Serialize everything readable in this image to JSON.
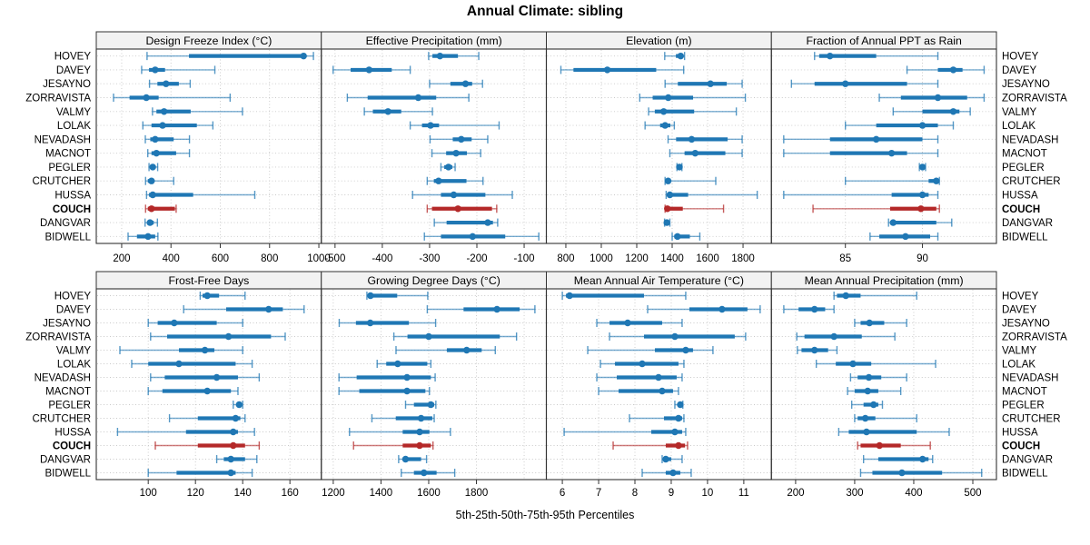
{
  "title": "Annual Climate: sibling",
  "caption": "5th-25th-50th-75th-95th Percentiles",
  "sites": [
    "HOVEY",
    "DAVEY",
    "JESAYNO",
    "ZORRAVISTA",
    "VALMY",
    "LOLAK",
    "NEVADASH",
    "MACNOT",
    "PEGLER",
    "CRUTCHER",
    "HUSSA",
    "COUCH",
    "DANGVAR",
    "BIDWELL"
  ],
  "highlight_site": "COUCH",
  "colors": {
    "series": "#1f77b4",
    "highlight": "#b42828",
    "grid": "#c9c9c9",
    "strip_bg": "#f2f2f2",
    "panel_border": "#333333",
    "text": "#000000"
  },
  "chart_data": {
    "type": "dot-interval-trellis",
    "percentiles": [
      5,
      25,
      50,
      75,
      95
    ],
    "layout": {
      "rows": 2,
      "cols": 4
    },
    "panels": [
      {
        "title": "Design Freeze Index (°C)",
        "xlim": [
          97,
          1010
        ],
        "ticks": [
          200,
          400,
          600,
          800,
          1000
        ],
        "values": [
          [
            303,
            473,
            938,
            946,
            978
          ],
          [
            281,
            311,
            336,
            376,
            578
          ],
          [
            313,
            345,
            380,
            432,
            478
          ],
          [
            167,
            232,
            300,
            350,
            640
          ],
          [
            325,
            341,
            372,
            480,
            690
          ],
          [
            286,
            321,
            366,
            505,
            570
          ],
          [
            296,
            316,
            336,
            411,
            475
          ],
          [
            306,
            321,
            341,
            421,
            475
          ],
          [
            311,
            318,
            326,
            336,
            346
          ],
          [
            297,
            306,
            321,
            331,
            411
          ],
          [
            301,
            311,
            326,
            490,
            740
          ],
          [
            297,
            306,
            321,
            416,
            421
          ],
          [
            295,
            305,
            315,
            330,
            345
          ],
          [
            226,
            262,
            307,
            336,
            347
          ]
        ]
      },
      {
        "title": "Effective Precipitation (mm)",
        "xlim": [
          -529,
          -53
        ],
        "ticks": [
          -500,
          -400,
          -300,
          -200,
          -100
        ],
        "values": [
          [
            -302,
            -294,
            -278,
            -240,
            -196
          ],
          [
            -504,
            -467,
            -428,
            -380,
            -341
          ],
          [
            -300,
            -256,
            -224,
            -210,
            -188
          ],
          [
            -474,
            -431,
            -324,
            -286,
            -217
          ],
          [
            -438,
            -420,
            -388,
            -360,
            -294
          ],
          [
            -341,
            -316,
            -298,
            -280,
            -153
          ],
          [
            -299,
            -251,
            -233,
            -211,
            -177
          ],
          [
            -295,
            -265,
            -244,
            -221,
            -192
          ],
          [
            -276,
            -269,
            -260,
            -252,
            -246
          ],
          [
            -305,
            -291,
            -281,
            -222,
            -187
          ],
          [
            -336,
            -276,
            -249,
            -182,
            -125
          ],
          [
            -305,
            -295,
            -240,
            -168,
            -158
          ],
          [
            -290,
            -264,
            -177,
            -166,
            -156
          ],
          [
            -311,
            -276,
            -209,
            -140,
            -69
          ]
        ]
      },
      {
        "title": "Elevation (m)",
        "xlim": [
          690,
          1960
        ],
        "ticks": [
          800,
          1000,
          1200,
          1400,
          1600,
          1800
        ],
        "values": [
          [
            1358,
            1421,
            1448,
            1462,
            1470
          ],
          [
            772,
            843,
            1034,
            1310,
            1465
          ],
          [
            1360,
            1432,
            1616,
            1708,
            1795
          ],
          [
            1217,
            1290,
            1378,
            1518,
            1813
          ],
          [
            1267,
            1302,
            1352,
            1524,
            1762
          ],
          [
            1247,
            1332,
            1360,
            1390,
            1412
          ],
          [
            1377,
            1422,
            1510,
            1713,
            1795
          ],
          [
            1387,
            1470,
            1530,
            1700,
            1795
          ],
          [
            1427,
            1434,
            1441,
            1449,
            1455
          ],
          [
            1360,
            1366,
            1377,
            1388,
            1646
          ],
          [
            1366,
            1380,
            1387,
            1490,
            1880
          ],
          [
            1360,
            1366,
            1373,
            1460,
            1690
          ],
          [
            1357,
            1363,
            1370,
            1380,
            1387
          ],
          [
            1400,
            1412,
            1430,
            1500,
            1556
          ]
        ]
      },
      {
        "title": "Fraction of Annual PPT as Rain",
        "xlim": [
          80.2,
          94.8
        ],
        "ticks": [
          85,
          90
        ],
        "values": [
          [
            83.0,
            83.3,
            84.0,
            87.0,
            91.0
          ],
          [
            89.0,
            91.0,
            92.0,
            92.6,
            94.0
          ],
          [
            81.5,
            83.0,
            85.0,
            89.0,
            91.0
          ],
          [
            87.2,
            88.6,
            91.0,
            92.9,
            94.0
          ],
          [
            88.1,
            90.0,
            92.0,
            92.4,
            93.1
          ],
          [
            85.0,
            87.0,
            90.0,
            91.0,
            92.0
          ],
          [
            81.0,
            84.0,
            87.0,
            90.0,
            91.0
          ],
          [
            81.0,
            84.0,
            88.0,
            89.0,
            91.0
          ],
          [
            89.8,
            89.9,
            90.0,
            90.1,
            90.2
          ],
          [
            85.0,
            90.4,
            90.9,
            91.0,
            91.1
          ],
          [
            81.0,
            88.0,
            90.0,
            90.4,
            91.0
          ],
          [
            82.9,
            87.9,
            89.9,
            90.9,
            91.1
          ],
          [
            87.8,
            87.9,
            88.1,
            90.9,
            91.9
          ],
          [
            86.6,
            87.2,
            88.9,
            90.5,
            91.0
          ]
        ]
      },
      {
        "title": "Frost-Free Days",
        "xlim": [
          78,
          173.3
        ],
        "ticks": [
          100,
          120,
          140,
          160
        ],
        "values": [
          [
            122,
            123,
            125,
            130,
            141
          ],
          [
            115,
            133,
            151,
            157,
            166
          ],
          [
            100,
            104,
            111,
            129,
            140
          ],
          [
            101,
            108,
            134,
            152,
            158
          ],
          [
            88,
            113,
            124,
            128,
            140
          ],
          [
            93,
            100,
            113,
            137,
            144
          ],
          [
            101,
            107,
            129,
            138,
            147
          ],
          [
            100,
            106,
            125,
            135,
            138
          ],
          [
            136,
            137.5,
            138.5,
            139.5,
            140
          ],
          [
            109,
            121,
            137,
            139,
            141
          ],
          [
            87,
            116,
            136,
            138,
            145
          ],
          [
            103,
            121,
            136,
            141,
            147
          ],
          [
            129,
            132,
            135,
            141,
            146
          ],
          [
            100,
            112,
            135,
            137,
            144
          ]
        ]
      },
      {
        "title": "Growing Degree Days (°C)",
        "xlim": [
          1150,
          2093
        ],
        "ticks": [
          1200,
          1400,
          1600,
          1800
        ],
        "grid_extra": [
          2000
        ],
        "values": [
          [
            1341,
            1345,
            1356,
            1468,
            1596
          ],
          [
            1594,
            1746,
            1886,
            1981,
            2045
          ],
          [
            1225,
            1295,
            1355,
            1517,
            1629
          ],
          [
            1454,
            1511,
            1600,
            1898,
            1968
          ],
          [
            1463,
            1676,
            1759,
            1822,
            1879
          ],
          [
            1384,
            1422,
            1470,
            1594,
            1609
          ],
          [
            1224,
            1298,
            1509,
            1609,
            1627
          ],
          [
            1224,
            1309,
            1509,
            1586,
            1603
          ],
          [
            1503,
            1538,
            1609,
            1623,
            1630
          ],
          [
            1362,
            1462,
            1568,
            1615,
            1623
          ],
          [
            1268,
            1491,
            1562,
            1603,
            1691
          ],
          [
            1285,
            1491,
            1562,
            1609,
            1618
          ],
          [
            1474,
            1491,
            1503,
            1568,
            1591
          ],
          [
            1485,
            1538,
            1580,
            1633,
            1709
          ]
        ]
      },
      {
        "title": "Mean Annual Air Temperature (°C)",
        "xlim": [
          5.56,
          11.76
        ],
        "ticks": [
          6,
          7,
          8,
          9,
          10,
          11
        ],
        "values": [
          [
            6.0,
            6.1,
            6.2,
            8.25,
            9.4
          ],
          [
            8.35,
            9.5,
            10.4,
            11.1,
            11.45
          ],
          [
            6.95,
            7.3,
            7.8,
            8.75,
            9.3
          ],
          [
            7.3,
            8.25,
            9.1,
            10.75,
            11.05
          ],
          [
            6.7,
            8.55,
            9.4,
            9.6,
            10.15
          ],
          [
            7.05,
            7.45,
            8.2,
            9.2,
            9.35
          ],
          [
            6.95,
            7.5,
            8.65,
            9.15,
            9.3
          ],
          [
            7.0,
            7.55,
            8.75,
            9.05,
            9.2
          ],
          [
            9.1,
            9.18,
            9.25,
            9.3,
            9.32
          ],
          [
            7.85,
            8.8,
            9.2,
            9.3,
            9.35
          ],
          [
            6.05,
            8.45,
            9.1,
            9.3,
            9.4
          ],
          [
            7.4,
            8.85,
            9.2,
            9.38,
            9.45
          ],
          [
            8.75,
            8.8,
            8.85,
            9.0,
            9.3
          ],
          [
            8.2,
            8.85,
            9.05,
            9.25,
            9.55
          ]
        ]
      },
      {
        "title": "Mean Annual Precipitation (mm)",
        "xlim": [
          159,
          540
        ],
        "ticks": [
          200,
          300,
          400,
          500
        ],
        "values": [
          [
            265,
            270,
            285,
            310,
            405
          ],
          [
            180,
            205,
            232,
            250,
            265
          ],
          [
            300,
            310,
            325,
            350,
            388
          ],
          [
            202,
            215,
            265,
            312,
            368
          ],
          [
            203,
            210,
            232,
            255,
            270
          ],
          [
            235,
            268,
            297,
            328,
            437
          ],
          [
            293,
            305,
            324,
            345,
            388
          ],
          [
            288,
            300,
            322,
            340,
            378
          ],
          [
            295,
            315,
            332,
            340,
            347
          ],
          [
            300,
            305,
            318,
            335,
            405
          ],
          [
            273,
            290,
            320,
            405,
            460
          ],
          [
            305,
            310,
            342,
            378,
            428
          ],
          [
            315,
            340,
            415,
            425,
            432
          ],
          [
            310,
            330,
            380,
            448,
            515
          ]
        ]
      }
    ]
  }
}
